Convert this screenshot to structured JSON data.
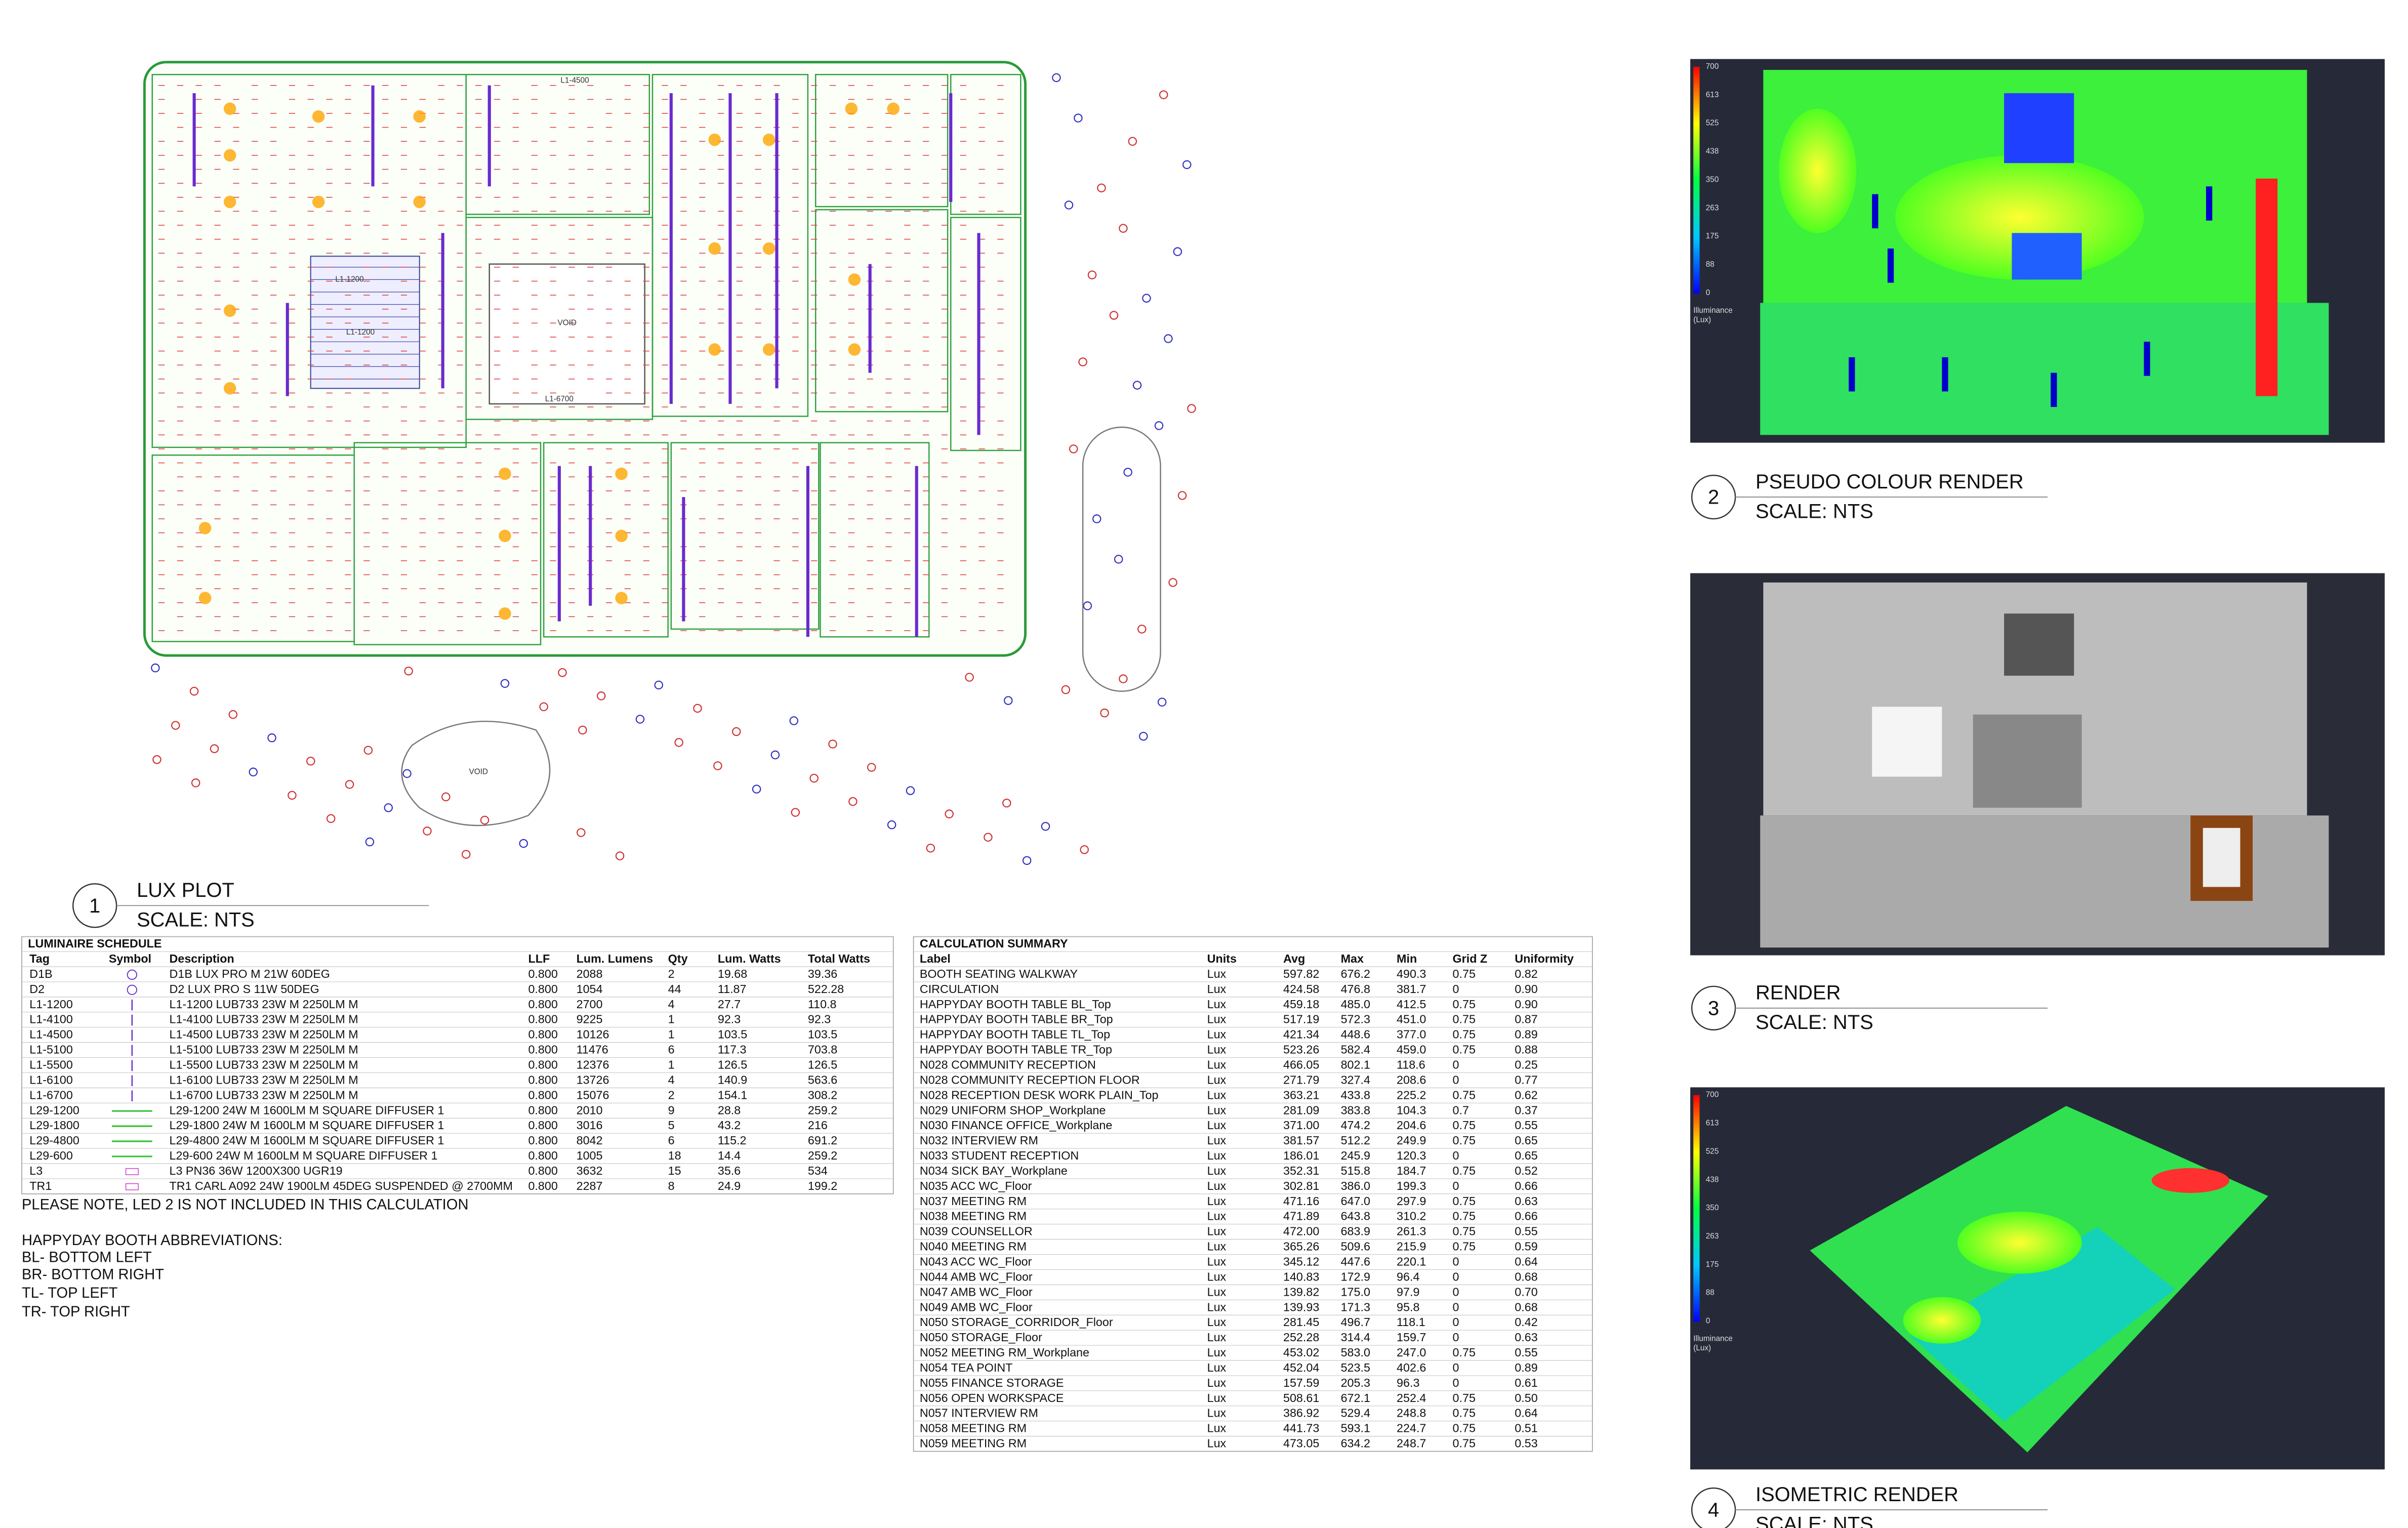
{
  "lux_plot": {
    "number": "1",
    "title": "LUX PLOT",
    "scale": "SCALE: NTS",
    "labels": [
      "VOID",
      "VOID",
      "L1-4500",
      "L1-6700",
      "L1-1200",
      "L1-1200"
    ]
  },
  "renders": [
    {
      "number": "2",
      "title": "PSEUDO COLOUR RENDER",
      "scale": "SCALE: NTS",
      "legend": {
        "ticks": [
          "700",
          "613",
          "525",
          "438",
          "350",
          "263",
          "175",
          "88",
          "0"
        ],
        "title": [
          "Illuminance",
          "(Lux)"
        ]
      }
    },
    {
      "number": "3",
      "title": "RENDER",
      "scale": "SCALE: NTS"
    },
    {
      "number": "4",
      "title": "ISOMETRIC RENDER",
      "scale": "SCALE: NTS",
      "legend": {
        "ticks": [
          "700",
          "613",
          "525",
          "438",
          "350",
          "263",
          "175",
          "88",
          "0"
        ],
        "title": [
          "Illuminance",
          "(Lux)"
        ]
      }
    }
  ],
  "luminaire_schedule": {
    "title": "LUMINAIRE SCHEDULE",
    "columns": [
      "Tag",
      "Symbol",
      "Description",
      "LLF",
      "Lum. Lumens",
      "Qty",
      "Lum. Watts",
      "Total Watts"
    ],
    "rows": [
      [
        "D1B",
        "D1B LUX PRO M 21W 60DEG",
        "0.800",
        "2088",
        "2",
        "19.68",
        "39.36"
      ],
      [
        "D2",
        "D2 LUX PRO S 11W 50DEG",
        "0.800",
        "1054",
        "44",
        "11.87",
        "522.28"
      ],
      [
        "L1-1200",
        "L1-1200 LUB733 23W M 2250LM M",
        "0.800",
        "2700",
        "4",
        "27.7",
        "110.8"
      ],
      [
        "L1-4100",
        "L1-4100 LUB733 23W M 2250LM M",
        "0.800",
        "9225",
        "1",
        "92.3",
        "92.3"
      ],
      [
        "L1-4500",
        "L1-4500 LUB733 23W M 2250LM M",
        "0.800",
        "10126",
        "1",
        "103.5",
        "103.5"
      ],
      [
        "L1-5100",
        "L1-5100 LUB733 23W M 2250LM M",
        "0.800",
        "11476",
        "6",
        "117.3",
        "703.8"
      ],
      [
        "L1-5500",
        "L1-5500 LUB733 23W M 2250LM M",
        "0.800",
        "12376",
        "1",
        "126.5",
        "126.5"
      ],
      [
        "L1-6100",
        "L1-6100 LUB733 23W M 2250LM M",
        "0.800",
        "13726",
        "4",
        "140.9",
        "563.6"
      ],
      [
        "L1-6700",
        "L1-6700 LUB733 23W M 2250LM M",
        "0.800",
        "15076",
        "2",
        "154.1",
        "308.2"
      ],
      [
        "L29-1200",
        "L29-1200 24W M 1600LM M SQUARE DIFFUSER 1",
        "0.800",
        "2010",
        "9",
        "28.8",
        "259.2"
      ],
      [
        "L29-1800",
        "L29-1800 24W M 1600LM M SQUARE DIFFUSER 1",
        "0.800",
        "3016",
        "5",
        "43.2",
        "216"
      ],
      [
        "L29-4800",
        "L29-4800 24W M 1600LM M SQUARE DIFFUSER 1",
        "0.800",
        "8042",
        "6",
        "115.2",
        "691.2"
      ],
      [
        "L29-600",
        "L29-600 24W M 1600LM M SQUARE DIFFUSER 1",
        "0.800",
        "1005",
        "18",
        "14.4",
        "259.2"
      ],
      [
        "L3",
        "L3 PN36 36W 1200X300 UGR19",
        "0.800",
        "3632",
        "15",
        "35.6",
        "534"
      ],
      [
        "TR1",
        "TR1 CARL A092 24W 1900LM 45DEG SUSPENDED @ 2700MM",
        "0.800",
        "2287",
        "8",
        "24.9",
        "199.2"
      ]
    ]
  },
  "notes": [
    "PLEASE NOTE, LED 2 IS NOT INCLUDED IN THIS CALCULATION",
    "HAPPYDAY BOOTH ABBREVIATIONS:",
    "BL- BOTTOM LEFT",
    "BR- BOTTOM RIGHT",
    "TL- TOP LEFT",
    "TR- TOP RIGHT"
  ],
  "calculation_summary": {
    "title": "CALCULATION SUMMARY",
    "columns": [
      "Label",
      "Units",
      "Avg",
      "Max",
      "Min",
      "Grid Z",
      "Uniformity"
    ],
    "rows": [
      [
        "BOOTH SEATING WALKWAY",
        "Lux",
        "597.82",
        "676.2",
        "490.3",
        "0.75",
        "0.82"
      ],
      [
        "CIRCULATION",
        "Lux",
        "424.58",
        "476.8",
        "381.7",
        "0",
        "0.90"
      ],
      [
        "HAPPYDAY BOOTH TABLE BL_Top",
        "Lux",
        "459.18",
        "485.0",
        "412.5",
        "0.75",
        "0.90"
      ],
      [
        "HAPPYDAY BOOTH TABLE BR_Top",
        "Lux",
        "517.19",
        "572.3",
        "451.0",
        "0.75",
        "0.87"
      ],
      [
        "HAPPYDAY BOOTH TABLE TL_Top",
        "Lux",
        "421.34",
        "448.6",
        "377.0",
        "0.75",
        "0.89"
      ],
      [
        "HAPPYDAY BOOTH TABLE TR_Top",
        "Lux",
        "523.26",
        "582.4",
        "459.0",
        "0.75",
        "0.88"
      ],
      [
        "N028 COMMUNITY RECEPTION",
        "Lux",
        "466.05",
        "802.1",
        "118.6",
        "0",
        "0.25"
      ],
      [
        "N028 COMMUNITY RECEPTION FLOOR",
        "Lux",
        "271.79",
        "327.4",
        "208.6",
        "0",
        "0.77"
      ],
      [
        "N028 RECEPTION DESK WORK PLAIN_Top",
        "Lux",
        "363.21",
        "433.8",
        "225.2",
        "0.75",
        "0.62"
      ],
      [
        "N029 UNIFORM SHOP_Workplane",
        "Lux",
        "281.09",
        "383.8",
        "104.3",
        "0.7",
        "0.37"
      ],
      [
        "N030 FINANCE OFFICE_Workplane",
        "Lux",
        "371.00",
        "474.2",
        "204.6",
        "0.75",
        "0.55"
      ],
      [
        "N032 INTERVIEW RM",
        "Lux",
        "381.57",
        "512.2",
        "249.9",
        "0.75",
        "0.65"
      ],
      [
        "N033 STUDENT RECEPTION",
        "Lux",
        "186.01",
        "245.9",
        "120.3",
        "0",
        "0.65"
      ],
      [
        "N034 SICK BAY_Workplane",
        "Lux",
        "352.31",
        "515.8",
        "184.7",
        "0.75",
        "0.52"
      ],
      [
        "N035 ACC WC_Floor",
        "Lux",
        "302.81",
        "386.0",
        "199.3",
        "0",
        "0.66"
      ],
      [
        "N037 MEETING RM",
        "Lux",
        "471.16",
        "647.0",
        "297.9",
        "0.75",
        "0.63"
      ],
      [
        "N038 MEETING RM",
        "Lux",
        "471.89",
        "643.8",
        "310.2",
        "0.75",
        "0.66"
      ],
      [
        "N039 COUNSELLOR",
        "Lux",
        "472.00",
        "683.9",
        "261.3",
        "0.75",
        "0.55"
      ],
      [
        "N040 MEETING RM",
        "Lux",
        "365.26",
        "509.6",
        "215.9",
        "0.75",
        "0.59"
      ],
      [
        "N043 ACC WC_Floor",
        "Lux",
        "345.12",
        "447.6",
        "220.1",
        "0",
        "0.64"
      ],
      [
        "N044 AMB WC_Floor",
        "Lux",
        "140.83",
        "172.9",
        "96.4",
        "0",
        "0.68"
      ],
      [
        "N047 AMB WC_Floor",
        "Lux",
        "139.82",
        "175.0",
        "97.9",
        "0",
        "0.70"
      ],
      [
        "N049 AMB WC_Floor",
        "Lux",
        "139.93",
        "171.3",
        "95.8",
        "0",
        "0.68"
      ],
      [
        "N050 STORAGE_CORRIDOR_Floor",
        "Lux",
        "281.45",
        "496.7",
        "118.1",
        "0",
        "0.42"
      ],
      [
        "N050 STORAGE_Floor",
        "Lux",
        "252.28",
        "314.4",
        "159.7",
        "0",
        "0.63"
      ],
      [
        "N052 MEETING RM_Workplane",
        "Lux",
        "453.02",
        "583.0",
        "247.0",
        "0.75",
        "0.55"
      ],
      [
        "N054 TEA POINT",
        "Lux",
        "452.04",
        "523.5",
        "402.6",
        "0",
        "0.89"
      ],
      [
        "N055 FINANCE STORAGE",
        "Lux",
        "157.59",
        "205.3",
        "96.3",
        "0",
        "0.61"
      ],
      [
        "N056 OPEN WORKSPACE",
        "Lux",
        "508.61",
        "672.1",
        "252.4",
        "0.75",
        "0.50"
      ],
      [
        "N057 INTERVIEW RM",
        "Lux",
        "386.92",
        "529.4",
        "248.8",
        "0.75",
        "0.64"
      ],
      [
        "N058 MEETING RM",
        "Lux",
        "441.73",
        "593.1",
        "224.7",
        "0.75",
        "0.51"
      ],
      [
        "N059 MEETING RM",
        "Lux",
        "473.05",
        "634.2",
        "248.7",
        "0.75",
        "0.53"
      ]
    ]
  }
}
